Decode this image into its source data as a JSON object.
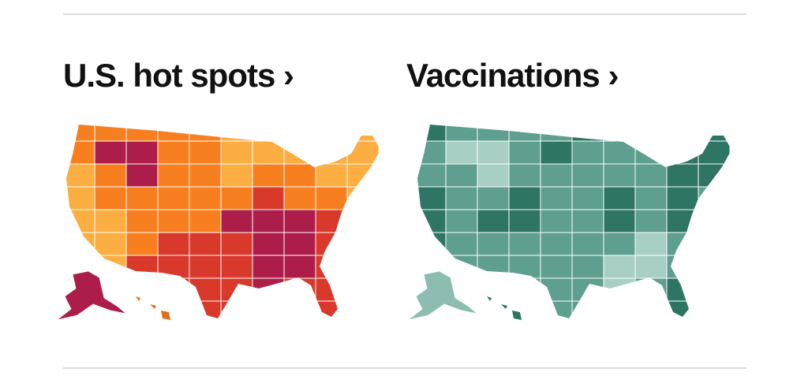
{
  "left_panel": {
    "title": "U.S. hot spots ›"
  },
  "right_panel": {
    "title": "Vaccinations ›"
  }
}
